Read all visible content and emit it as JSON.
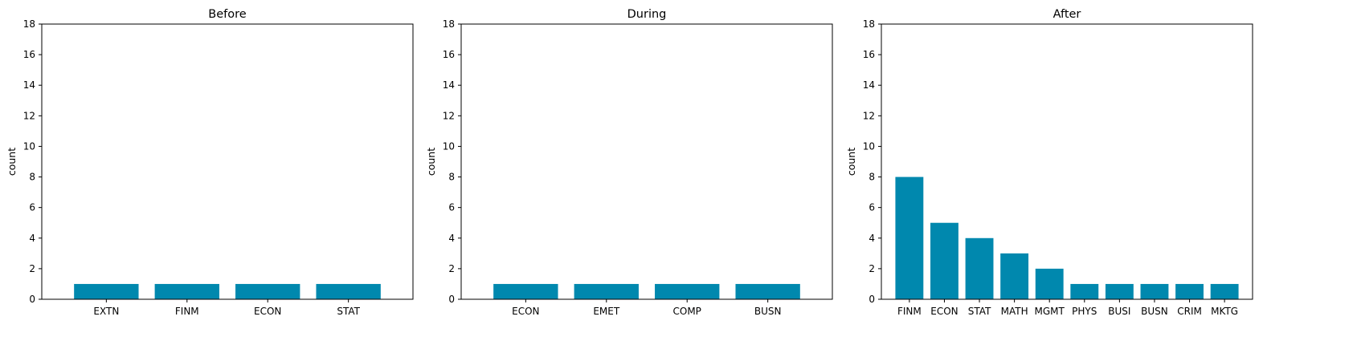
{
  "colors": {
    "bar": "#0088ae",
    "axis": "#000000"
  },
  "chart_data": [
    {
      "type": "bar",
      "title": "Before",
      "ylabel": "count",
      "ylim": [
        0,
        18
      ],
      "yticks": [
        0,
        2,
        4,
        6,
        8,
        10,
        12,
        14,
        16,
        18
      ],
      "categories": [
        "EXTN",
        "FINM",
        "ECON",
        "STAT"
      ],
      "values": [
        1,
        1,
        1,
        1
      ]
    },
    {
      "type": "bar",
      "title": "During",
      "ylabel": "count",
      "ylim": [
        0,
        18
      ],
      "yticks": [
        0,
        2,
        4,
        6,
        8,
        10,
        12,
        14,
        16,
        18
      ],
      "categories": [
        "ECON",
        "EMET",
        "COMP",
        "BUSN"
      ],
      "values": [
        1,
        1,
        1,
        1
      ]
    },
    {
      "type": "bar",
      "title": "After",
      "ylabel": "count",
      "ylim": [
        0,
        18
      ],
      "yticks": [
        0,
        2,
        4,
        6,
        8,
        10,
        12,
        14,
        16,
        18
      ],
      "categories": [
        "FINM",
        "ECON",
        "STAT",
        "MATH",
        "MGMT",
        "PHYS",
        "BUSI",
        "BUSN",
        "CRIM",
        "MKTG"
      ],
      "values": [
        8,
        5,
        4,
        3,
        2,
        1,
        1,
        1,
        1,
        1
      ]
    }
  ]
}
